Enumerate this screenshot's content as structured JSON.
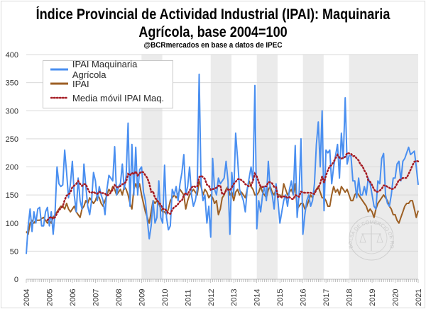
{
  "chart_data": {
    "type": "line",
    "title_line1": "Índice Provincial de Actividad Industrial (IPAI): Maquinaria",
    "title_line2": "Agrícola, base 2004=100",
    "subtitle": "@BCRmercados en base a datos de IPEC",
    "watermark": "BOLSA DE COMERCIO DE ROSARIO",
    "x_start": "2004-01",
    "frequency": "monthly",
    "xlim": [
      2004,
      2021
    ],
    "x_ticks": [
      "2004",
      "2005",
      "2006",
      "2007",
      "2008",
      "2009",
      "2010",
      "2011",
      "2012",
      "2013",
      "2014",
      "2015",
      "2016",
      "2017",
      "2018",
      "2019",
      "2020",
      "2021"
    ],
    "ylim": [
      0,
      400
    ],
    "y_ticks": [
      0,
      50,
      100,
      150,
      200,
      250,
      300,
      350,
      400
    ],
    "grid": "horizontal",
    "legend_position": "top-left",
    "shaded_periods": [
      [
        2009.0,
        2009.9
      ],
      [
        2012.0,
        2012.9
      ],
      [
        2014.0,
        2014.9
      ],
      [
        2016.0,
        2016.9
      ],
      [
        2018.0,
        2021.0
      ]
    ],
    "series": [
      {
        "name": "IPAI Maquinaria Agrícola",
        "color": "#4a8ff0",
        "style": "solid",
        "values": [
          45,
          95,
          125,
          85,
          120,
          100,
          125,
          128,
          95,
          95,
          120,
          128,
          95,
          120,
          80,
          120,
          200,
          170,
          165,
          168,
          230,
          190,
          145,
          170,
          210,
          150,
          120,
          180,
          140,
          125,
          205,
          165,
          130,
          115,
          140,
          190,
          175,
          140,
          165,
          150,
          140,
          115,
          160,
          185,
          180,
          175,
          236,
          150,
          165,
          170,
          205,
          160,
          185,
          278,
          130,
          240,
          150,
          235,
          150,
          195,
          200,
          155,
          140,
          105,
          72,
          95,
          140,
          100,
          110,
          175,
          110,
          100,
          203,
          110,
          88,
          95,
          160,
          150,
          165,
          140,
          170,
          190,
          222,
          150,
          165,
          200,
          150,
          130,
          140,
          160,
          365,
          170,
          140,
          150,
          100,
          130,
          75,
          215,
          160,
          150,
          180,
          170,
          175,
          180,
          210,
          175,
          80,
          190,
          150,
          260,
          215,
          160,
          150,
          140,
          120,
          160,
          180,
          200,
          175,
          345,
          90,
          140,
          120,
          150,
          165,
          140,
          210,
          160,
          150,
          125,
          170,
          140,
          100,
          120,
          140,
          150,
          130,
          160,
          175,
          150,
          238,
          110,
          150,
          250,
          80,
          115,
          140,
          150,
          130,
          140,
          170,
          240,
          280,
          200,
          300,
          122,
          230,
          225,
          230,
          170,
          200,
          220,
          240,
          180,
          260,
          215,
          323,
          205,
          220,
          220,
          175,
          175,
          145,
          180,
          150,
          150,
          165,
          150,
          180,
          170,
          150,
          130,
          125,
          175,
          170,
          215,
          224,
          150,
          135,
          130,
          150,
          180,
          180,
          205,
          210,
          175,
          210,
          215,
          225,
          235,
          222,
          225,
          228,
          200,
          168
        ]
      },
      {
        "name": "IPAI",
        "color": "#9c5f24",
        "style": "solid",
        "values": [
          85,
          80,
          100,
          105,
          100,
          105,
          105,
          105,
          108,
          110,
          105,
          100,
          105,
          100,
          110,
          115,
          120,
          125,
          130,
          130,
          125,
          135,
          125,
          120,
          125,
          130,
          120,
          115,
          110,
          125,
          130,
          140,
          135,
          145,
          140,
          135,
          140,
          150,
          145,
          135,
          130,
          140,
          150,
          160,
          155,
          165,
          160,
          150,
          155,
          160,
          150,
          165,
          160,
          150,
          135,
          125,
          160,
          170,
          160,
          170,
          150,
          135,
          120,
          110,
          100,
          120,
          140,
          135,
          140,
          135,
          125,
          120,
          120,
          115,
          125,
          140,
          145,
          150,
          145,
          150,
          160,
          155,
          150,
          125,
          140,
          150,
          155,
          160,
          155,
          150,
          175,
          165,
          150,
          160,
          155,
          145,
          150,
          145,
          135,
          140,
          115,
          125,
          145,
          150,
          160,
          165,
          150,
          155,
          140,
          155,
          160,
          150,
          155,
          150,
          145,
          160,
          175,
          165,
          160,
          150,
          150,
          155,
          165,
          155,
          150,
          145,
          160,
          165,
          155,
          150,
          160,
          150,
          150,
          145,
          170,
          160,
          150,
          155,
          160,
          150,
          170,
          125,
          130,
          135,
          135,
          125,
          130,
          140,
          150,
          145,
          155,
          160,
          165,
          155,
          145,
          145,
          140,
          130,
          130,
          150,
          165,
          155,
          160,
          150,
          165,
          160,
          155,
          160,
          150,
          140,
          140,
          150,
          155,
          150,
          145,
          140,
          135,
          130,
          120,
          125,
          120,
          110,
          125,
          135,
          140,
          145,
          150,
          145,
          140,
          130,
          125,
          115,
          115,
          105,
          100,
          110,
          120,
          130,
          135,
          135,
          140,
          140,
          125,
          110,
          122
        ]
      },
      {
        "name": "Media móvil IPAI Maq.",
        "color": "#a51c24",
        "style": "dotted",
        "derived_from": "IPAI Maquinaria Agrícola",
        "window_months": 12
      }
    ]
  }
}
